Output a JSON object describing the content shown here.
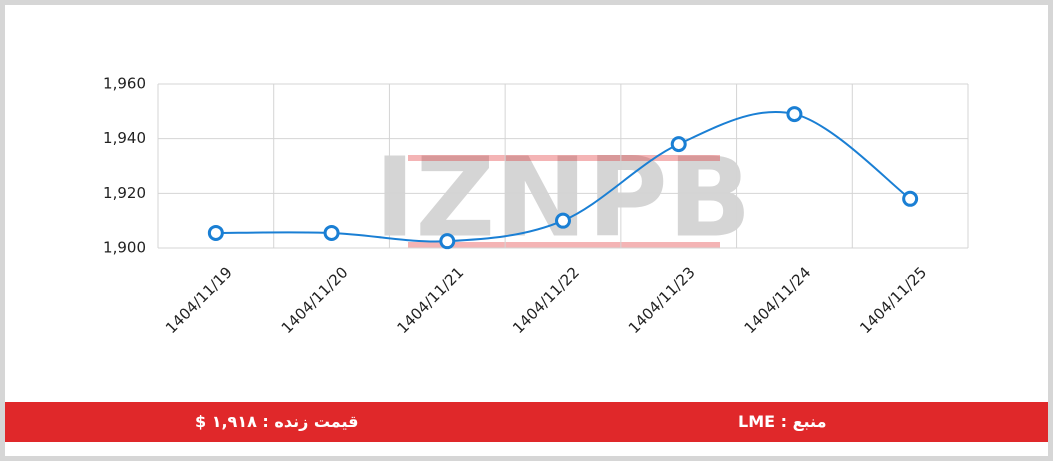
{
  "chart_data": {
    "type": "line",
    "categories": [
      "1404/11/19",
      "1404/11/20",
      "1404/11/21",
      "1404/11/22",
      "1404/11/23",
      "1404/11/24",
      "1404/11/25"
    ],
    "series": [
      {
        "name": "LME",
        "color": "#1a7fd4",
        "values": [
          1905.5,
          1905.5,
          1902.5,
          1910,
          1938,
          1949,
          1918
        ]
      }
    ],
    "ylim": [
      1900,
      1960
    ],
    "yticks": [
      {
        "value": 1900,
        "label": "1,900"
      },
      {
        "value": 1920,
        "label": "1,920"
      },
      {
        "value": 1940,
        "label": "1,940"
      },
      {
        "value": 1960,
        "label": "1,960"
      }
    ],
    "grid": true,
    "watermark": "IZNPB"
  },
  "footer": {
    "live_price": "قیمت زنده : ۱,۹۱۸ $",
    "source": "منبع : LME"
  }
}
